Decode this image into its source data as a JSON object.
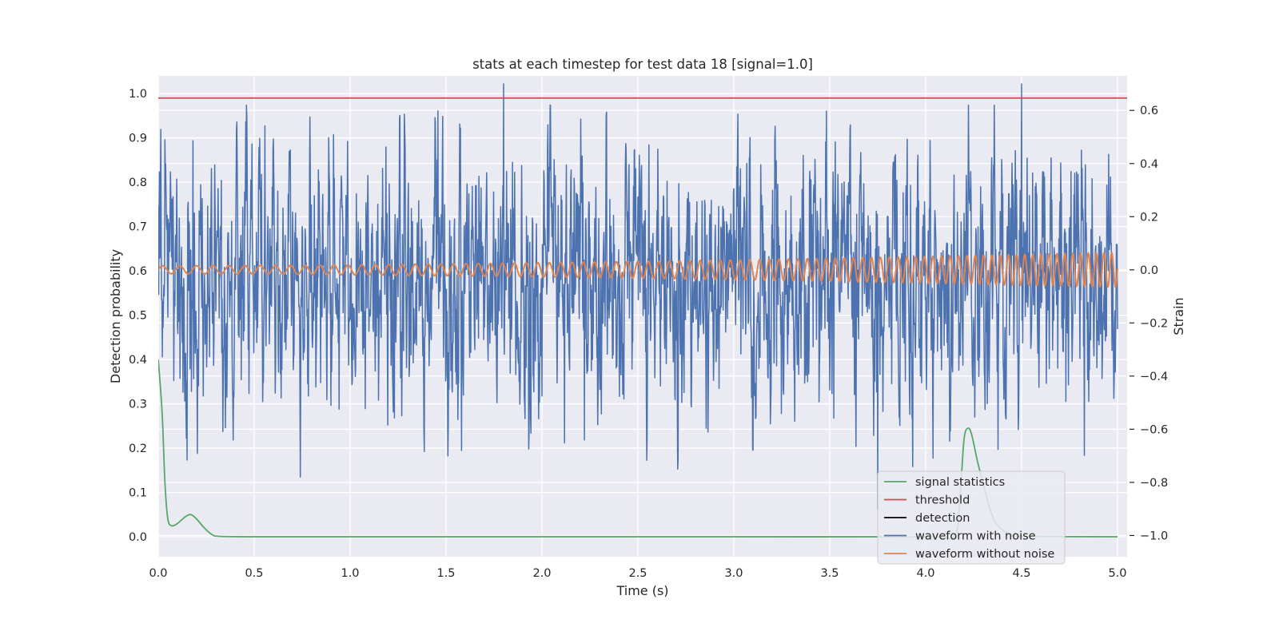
{
  "chart_data": {
    "type": "line",
    "title": "stats at each timestep for test data 18 [signal=1.0]",
    "xlabel": "Time (s)",
    "ylabel_left": "Detection probability",
    "ylabel_right": "Strain",
    "xlim": [
      0.0,
      5.05
    ],
    "ylim_left": [
      -0.045,
      1.04
    ],
    "ylim_right": [
      -1.08,
      0.73
    ],
    "grid": true,
    "legend_location": "lower right",
    "x_ticks": [
      "0.0",
      "0.5",
      "1.0",
      "1.5",
      "2.0",
      "2.5",
      "3.0",
      "3.5",
      "4.0",
      "4.5",
      "5.0"
    ],
    "y_left_ticks": [
      "0.0",
      "0.1",
      "0.2",
      "0.3",
      "0.4",
      "0.5",
      "0.6",
      "0.7",
      "0.8",
      "0.9",
      "1.0"
    ],
    "y_right_ticks": [
      "−1.0",
      "−0.8",
      "−0.6",
      "−0.4",
      "−0.2",
      "0.0",
      "0.2",
      "0.4",
      "0.6"
    ],
    "series": [
      {
        "name": "signal statistics",
        "axis": "left",
        "color": "#55a868",
        "x": [
          0.0,
          0.02,
          0.035,
          0.05,
          0.07,
          0.1,
          0.14,
          0.17,
          0.2,
          0.24,
          0.28,
          0.32,
          0.5,
          1.0,
          2.0,
          3.0,
          4.0,
          4.15,
          4.18,
          4.2,
          4.22,
          4.24,
          4.27,
          4.3,
          4.33,
          4.36,
          4.4,
          4.45,
          4.5,
          5.0
        ],
        "y": [
          0.4,
          0.28,
          0.12,
          0.04,
          0.025,
          0.03,
          0.045,
          0.05,
          0.04,
          0.02,
          0.005,
          0.001,
          0.0,
          0.0,
          0.0,
          0.0,
          0.0,
          0.002,
          0.1,
          0.22,
          0.245,
          0.23,
          0.17,
          0.12,
          0.07,
          0.035,
          0.015,
          0.005,
          0.001,
          0.0
        ]
      },
      {
        "name": "threshold",
        "axis": "left",
        "color": "#c44e52",
        "x": [
          0.0,
          5.05
        ],
        "y": [
          0.99,
          0.99
        ]
      },
      {
        "name": "detection",
        "axis": "left",
        "color": "#000000",
        "x": [],
        "y": []
      },
      {
        "name": "waveform with noise",
        "axis": "right",
        "color": "#4c72b0",
        "x_range": [
          0.0,
          5.0
        ],
        "typical_range": [
          -0.6,
          0.5
        ],
        "extrema": [
          {
            "x": 0.74,
            "y": -0.78
          },
          {
            "x": 1.58,
            "y": -0.68
          },
          {
            "x": 1.8,
            "y": 0.7
          },
          {
            "x": 3.75,
            "y": -0.9
          },
          {
            "x": 4.5,
            "y": 0.7
          }
        ]
      },
      {
        "name": "waveform without noise",
        "axis": "right",
        "color": "#dd8452",
        "x_range": [
          0.0,
          5.0
        ],
        "amplitude_start": 0.015,
        "amplitude_end": 0.065,
        "cycles_per_second_start": 11,
        "cycles_per_second_end": 25
      }
    ]
  }
}
